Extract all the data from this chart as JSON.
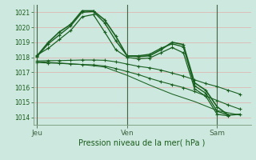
{
  "title": "Pression niveau de la mer( hPa )",
  "day_labels": [
    "Jeu",
    "Ven",
    "Sam"
  ],
  "day_positions": [
    0,
    24,
    48
  ],
  "xlim": [
    -1,
    57
  ],
  "ylim": [
    1013.5,
    1021.5
  ],
  "yticks": [
    1014,
    1015,
    1016,
    1017,
    1018,
    1019,
    1020,
    1021
  ],
  "bg_color": "#cce8df",
  "grid_color_h": "#e8a0a0",
  "grid_color_v": "#e8a0a0",
  "line_color_dark": "#1a6020",
  "line_color_med": "#2a7830",
  "series": [
    {
      "x": [
        0,
        3,
        6,
        9,
        12,
        15,
        18,
        21,
        24,
        27,
        30,
        33,
        36,
        39,
        42,
        45,
        48,
        51,
        54
      ],
      "y": [
        1018.1,
        1019.0,
        1019.7,
        1020.2,
        1021.1,
        1021.1,
        1020.5,
        1019.4,
        1018.1,
        1018.05,
        1018.1,
        1018.5,
        1019.0,
        1018.85,
        1016.3,
        1015.8,
        1014.7,
        1014.15,
        1014.2
      ],
      "lw": 1.2,
      "marker": true
    },
    {
      "x": [
        0,
        3,
        6,
        9,
        12,
        15,
        18,
        21,
        24,
        27,
        30,
        33,
        36,
        39,
        42,
        45,
        48,
        51
      ],
      "y": [
        1018.05,
        1018.9,
        1019.5,
        1020.1,
        1021.0,
        1021.05,
        1020.3,
        1019.1,
        1018.1,
        1018.1,
        1018.2,
        1018.6,
        1018.9,
        1018.7,
        1016.1,
        1015.6,
        1014.4,
        1014.15
      ],
      "lw": 1.0,
      "marker": true
    },
    {
      "x": [
        0,
        3,
        6,
        9,
        12,
        15,
        18,
        21,
        24,
        27,
        30,
        33,
        36,
        39,
        42,
        45,
        48,
        51
      ],
      "y": [
        1018.15,
        1018.6,
        1019.2,
        1019.8,
        1020.7,
        1020.85,
        1019.7,
        1018.5,
        1018.0,
        1017.9,
        1017.95,
        1018.3,
        1018.65,
        1018.3,
        1015.9,
        1015.4,
        1014.2,
        1014.1
      ],
      "lw": 0.9,
      "marker": true
    },
    {
      "x": [
        0,
        3,
        6,
        9,
        12,
        15,
        18,
        21,
        24,
        27,
        30,
        33,
        36,
        39,
        42,
        45,
        48,
        51,
        54
      ],
      "y": [
        1017.75,
        1017.78,
        1017.78,
        1017.8,
        1017.82,
        1017.82,
        1017.8,
        1017.7,
        1017.55,
        1017.4,
        1017.3,
        1017.15,
        1016.95,
        1016.75,
        1016.5,
        1016.25,
        1016.05,
        1015.8,
        1015.55
      ],
      "lw": 0.8,
      "marker": true
    },
    {
      "x": [
        0,
        3,
        6,
        9,
        12,
        15,
        18,
        21,
        24,
        27,
        30,
        33,
        36,
        39,
        42,
        45,
        48,
        51,
        54
      ],
      "y": [
        1017.65,
        1017.62,
        1017.6,
        1017.55,
        1017.52,
        1017.5,
        1017.42,
        1017.25,
        1017.05,
        1016.85,
        1016.6,
        1016.38,
        1016.18,
        1015.98,
        1015.72,
        1015.42,
        1015.12,
        1014.82,
        1014.55
      ],
      "lw": 0.8,
      "marker": true
    },
    {
      "x": [
        0,
        6,
        12,
        18,
        24,
        30,
        36,
        42,
        48,
        54
      ],
      "y": [
        1017.72,
        1017.62,
        1017.52,
        1017.35,
        1016.8,
        1016.15,
        1015.55,
        1015.05,
        1014.45,
        1014.15
      ],
      "lw": 0.75,
      "marker": false
    }
  ]
}
